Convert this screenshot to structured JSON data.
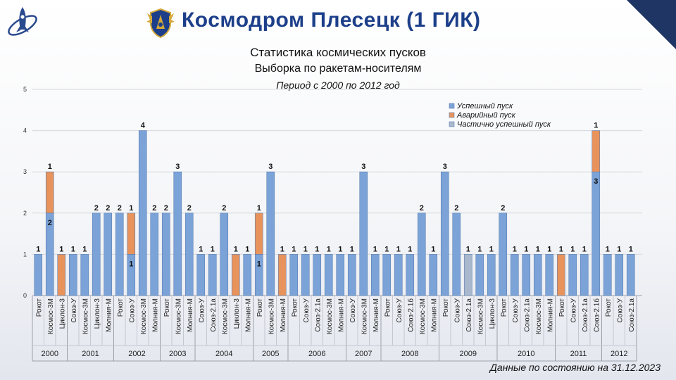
{
  "header": {
    "title": "Космодром Плесецк (1 ГИК)"
  },
  "chart_data": {
    "type": "bar",
    "stacked": true,
    "title": "Статистика космических пусков",
    "subtitle": "Выборка по ракетам-носителям",
    "period": "Период с 2000 по 2012 год",
    "ylim": [
      0,
      5
    ],
    "yticks": [
      "0",
      "1",
      "2",
      "3",
      "4",
      "5"
    ],
    "grid": true,
    "legend_position": "top-right",
    "series": [
      {
        "key": "s",
        "name": "Успешный пуск",
        "color": "#7ba3d8"
      },
      {
        "key": "f",
        "name": "Аварийный пуск",
        "color": "#e8935c"
      },
      {
        "key": "p",
        "name": "Частично успешный пуск",
        "color": "#a9b8cc"
      }
    ],
    "groups": [
      {
        "year": "2000",
        "bars": [
          {
            "cat": "Рокот",
            "s": 1,
            "f": 0,
            "p": 0,
            "labels": [
              {
                "text": "1",
                "pos": "top"
              }
            ]
          },
          {
            "cat": "Космос-3М",
            "s": 2,
            "f": 1,
            "p": 0,
            "labels": [
              {
                "text": "1",
                "pos": "top"
              },
              {
                "text": "2",
                "pos": "s"
              }
            ]
          },
          {
            "cat": "Циклон-3",
            "s": 0,
            "f": 1,
            "p": 0,
            "labels": [
              {
                "text": "1",
                "pos": "top"
              }
            ]
          }
        ]
      },
      {
        "year": "2001",
        "bars": [
          {
            "cat": "Союз-У",
            "s": 1,
            "f": 0,
            "p": 0,
            "labels": [
              {
                "text": "1",
                "pos": "top"
              }
            ]
          },
          {
            "cat": "Космос-3М",
            "s": 1,
            "f": 0,
            "p": 0,
            "labels": [
              {
                "text": "1",
                "pos": "top"
              }
            ]
          },
          {
            "cat": "Циклон-3",
            "s": 2,
            "f": 0,
            "p": 0,
            "labels": [
              {
                "text": "2",
                "pos": "top"
              }
            ]
          },
          {
            "cat": "Молния-М",
            "s": 2,
            "f": 0,
            "p": 0,
            "labels": [
              {
                "text": "2",
                "pos": "top"
              }
            ]
          }
        ]
      },
      {
        "year": "2002",
        "bars": [
          {
            "cat": "Рокот",
            "s": 2,
            "f": 0,
            "p": 0,
            "labels": [
              {
                "text": "2",
                "pos": "top"
              }
            ]
          },
          {
            "cat": "Союз-У",
            "s": 1,
            "f": 1,
            "p": 0,
            "labels": [
              {
                "text": "1",
                "pos": "top"
              },
              {
                "text": "1",
                "pos": "s"
              }
            ]
          },
          {
            "cat": "Космос-3М",
            "s": 4,
            "f": 0,
            "p": 0,
            "labels": [
              {
                "text": "4",
                "pos": "top"
              }
            ]
          },
          {
            "cat": "Молния-М",
            "s": 2,
            "f": 0,
            "p": 0,
            "labels": [
              {
                "text": "2",
                "pos": "top"
              }
            ]
          }
        ]
      },
      {
        "year": "2003",
        "bars": [
          {
            "cat": "Рокот",
            "s": 2,
            "f": 0,
            "p": 0,
            "labels": [
              {
                "text": "2",
                "pos": "top"
              }
            ]
          },
          {
            "cat": "Космос-3М",
            "s": 3,
            "f": 0,
            "p": 0,
            "labels": [
              {
                "text": "3",
                "pos": "top"
              }
            ]
          },
          {
            "cat": "Молния-М",
            "s": 2,
            "f": 0,
            "p": 0,
            "labels": [
              {
                "text": "2",
                "pos": "top"
              }
            ]
          }
        ]
      },
      {
        "year": "2004",
        "bars": [
          {
            "cat": "Союз-У",
            "s": 1,
            "f": 0,
            "p": 0,
            "labels": [
              {
                "text": "1",
                "pos": "top"
              }
            ]
          },
          {
            "cat": "Союз-2.1а",
            "s": 1,
            "f": 0,
            "p": 0,
            "labels": [
              {
                "text": "1",
                "pos": "top"
              }
            ]
          },
          {
            "cat": "Космос-3М",
            "s": 2,
            "f": 0,
            "p": 0,
            "labels": [
              {
                "text": "2",
                "pos": "top"
              }
            ]
          },
          {
            "cat": "Циклон-3",
            "s": 0,
            "f": 1,
            "p": 0,
            "labels": [
              {
                "text": "1",
                "pos": "top"
              }
            ]
          },
          {
            "cat": "Молния-М",
            "s": 1,
            "f": 0,
            "p": 0,
            "labels": [
              {
                "text": "1",
                "pos": "top"
              }
            ]
          }
        ]
      },
      {
        "year": "2005",
        "bars": [
          {
            "cat": "Рокот",
            "s": 1,
            "f": 1,
            "p": 0,
            "labels": [
              {
                "text": "1",
                "pos": "top"
              },
              {
                "text": "1",
                "pos": "s"
              }
            ]
          },
          {
            "cat": "Космос-3М",
            "s": 3,
            "f": 0,
            "p": 0,
            "labels": [
              {
                "text": "3",
                "pos": "top"
              }
            ]
          },
          {
            "cat": "Молния-М",
            "s": 0,
            "f": 1,
            "p": 0,
            "labels": [
              {
                "text": "1",
                "pos": "top"
              }
            ]
          }
        ]
      },
      {
        "year": "2006",
        "bars": [
          {
            "cat": "Рокот",
            "s": 1,
            "f": 0,
            "p": 0,
            "labels": [
              {
                "text": "1",
                "pos": "top"
              }
            ]
          },
          {
            "cat": "Союз-У",
            "s": 1,
            "f": 0,
            "p": 0,
            "labels": [
              {
                "text": "1",
                "pos": "top"
              }
            ]
          },
          {
            "cat": "Союз-2.1а",
            "s": 1,
            "f": 0,
            "p": 0,
            "labels": [
              {
                "text": "1",
                "pos": "top"
              }
            ]
          },
          {
            "cat": "Космос-3М",
            "s": 1,
            "f": 0,
            "p": 0,
            "labels": [
              {
                "text": "1",
                "pos": "top"
              }
            ]
          },
          {
            "cat": "Молния-М",
            "s": 1,
            "f": 0,
            "p": 0,
            "labels": [
              {
                "text": "1",
                "pos": "top"
              }
            ]
          }
        ]
      },
      {
        "year": "2007",
        "bars": [
          {
            "cat": "Союз-У",
            "s": 1,
            "f": 0,
            "p": 0,
            "labels": [
              {
                "text": "1",
                "pos": "top"
              }
            ]
          },
          {
            "cat": "Космос-3М",
            "s": 3,
            "f": 0,
            "p": 0,
            "labels": [
              {
                "text": "3",
                "pos": "top"
              }
            ]
          },
          {
            "cat": "Молния-М",
            "s": 1,
            "f": 0,
            "p": 0,
            "labels": [
              {
                "text": "1",
                "pos": "top"
              }
            ]
          }
        ]
      },
      {
        "year": "2008",
        "bars": [
          {
            "cat": "Рокот",
            "s": 1,
            "f": 0,
            "p": 0,
            "labels": [
              {
                "text": "1",
                "pos": "top"
              }
            ]
          },
          {
            "cat": "Союз-У",
            "s": 1,
            "f": 0,
            "p": 0,
            "labels": [
              {
                "text": "1",
                "pos": "top"
              }
            ]
          },
          {
            "cat": "Союз-2.1б",
            "s": 1,
            "f": 0,
            "p": 0,
            "labels": [
              {
                "text": "1",
                "pos": "top"
              }
            ]
          },
          {
            "cat": "Космос-3М",
            "s": 2,
            "f": 0,
            "p": 0,
            "labels": [
              {
                "text": "2",
                "pos": "top"
              }
            ]
          },
          {
            "cat": "Молния-М",
            "s": 1,
            "f": 0,
            "p": 0,
            "labels": [
              {
                "text": "1",
                "pos": "top"
              }
            ]
          }
        ]
      },
      {
        "year": "2009",
        "bars": [
          {
            "cat": "Рокот",
            "s": 3,
            "f": 0,
            "p": 0,
            "labels": [
              {
                "text": "3",
                "pos": "top"
              }
            ]
          },
          {
            "cat": "Союз-У",
            "s": 2,
            "f": 0,
            "p": 0,
            "labels": [
              {
                "text": "2",
                "pos": "top"
              }
            ]
          },
          {
            "cat": "Союз-2.1а",
            "s": 0,
            "f": 0,
            "p": 1,
            "labels": [
              {
                "text": "1",
                "pos": "top"
              }
            ]
          },
          {
            "cat": "Космос-3М",
            "s": 1,
            "f": 0,
            "p": 0,
            "labels": [
              {
                "text": "1",
                "pos": "top"
              }
            ]
          },
          {
            "cat": "Циклон-3",
            "s": 1,
            "f": 0,
            "p": 0,
            "labels": [
              {
                "text": "1",
                "pos": "top"
              }
            ]
          }
        ]
      },
      {
        "year": "2010",
        "bars": [
          {
            "cat": "Рокот",
            "s": 2,
            "f": 0,
            "p": 0,
            "labels": [
              {
                "text": "2",
                "pos": "top"
              }
            ]
          },
          {
            "cat": "Союз-У",
            "s": 1,
            "f": 0,
            "p": 0,
            "labels": [
              {
                "text": "1",
                "pos": "top"
              }
            ]
          },
          {
            "cat": "Союз-2.1а",
            "s": 1,
            "f": 0,
            "p": 0,
            "labels": [
              {
                "text": "1",
                "pos": "top"
              }
            ]
          },
          {
            "cat": "Космос-3М",
            "s": 1,
            "f": 0,
            "p": 0,
            "labels": [
              {
                "text": "1",
                "pos": "top"
              }
            ]
          },
          {
            "cat": "Молния-М",
            "s": 1,
            "f": 0,
            "p": 0,
            "labels": [
              {
                "text": "1",
                "pos": "top"
              }
            ]
          }
        ]
      },
      {
        "year": "2011",
        "bars": [
          {
            "cat": "Рокот",
            "s": 0,
            "f": 1,
            "p": 0,
            "labels": [
              {
                "text": "1",
                "pos": "top"
              }
            ]
          },
          {
            "cat": "Союз-У",
            "s": 1,
            "f": 0,
            "p": 0,
            "labels": [
              {
                "text": "1",
                "pos": "top"
              }
            ]
          },
          {
            "cat": "Союз-2.1а",
            "s": 1,
            "f": 0,
            "p": 0,
            "labels": [
              {
                "text": "1",
                "pos": "top"
              }
            ]
          },
          {
            "cat": "Союз-2.1б",
            "s": 3,
            "f": 1,
            "p": 0,
            "labels": [
              {
                "text": "1",
                "pos": "top"
              },
              {
                "text": "3",
                "pos": "s"
              }
            ]
          }
        ]
      },
      {
        "year": "2012",
        "bars": [
          {
            "cat": "Рокот",
            "s": 1,
            "f": 0,
            "p": 0,
            "labels": [
              {
                "text": "1",
                "pos": "top"
              }
            ]
          },
          {
            "cat": "Союз-У",
            "s": 1,
            "f": 0,
            "p": 0,
            "labels": [
              {
                "text": "1",
                "pos": "top"
              }
            ]
          },
          {
            "cat": "Союз-2.1а",
            "s": 1,
            "f": 0,
            "p": 0,
            "labels": [
              {
                "text": "1",
                "pos": "top"
              }
            ]
          }
        ]
      }
    ]
  },
  "footer": {
    "note": "Данные по состоянию на 31.12.2023"
  }
}
